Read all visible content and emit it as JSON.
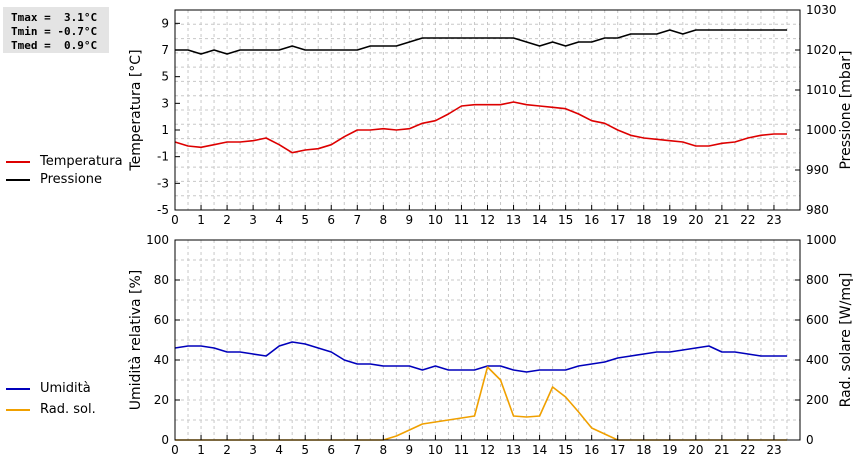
{
  "stats": {
    "tmax": "Tmax =  3.1°C",
    "tmin": "Tmin = -0.7°C",
    "tmed": "Tmed =  0.9°C"
  },
  "chart_data": [
    {
      "type": "line",
      "xlim": [
        0,
        24
      ],
      "x_ticks": [
        0,
        1,
        2,
        3,
        4,
        5,
        6,
        7,
        8,
        9,
        10,
        11,
        12,
        13,
        14,
        15,
        16,
        17,
        18,
        19,
        20,
        21,
        22,
        23
      ],
      "ylabel": "Temperatura [°C]",
      "ylim": [
        -5,
        10
      ],
      "y_ticks": [
        -5,
        -3,
        -1,
        1,
        3,
        5,
        7,
        9
      ],
      "y2label": "Pressione [mbar]",
      "y2lim": [
        980,
        1030
      ],
      "y2_ticks": [
        980,
        990,
        1000,
        1010,
        1020,
        1030
      ],
      "grid": true,
      "series": [
        {
          "name": "Temperatura",
          "color": "#dd0000",
          "axis": "left",
          "x": [
            0,
            0.5,
            1,
            1.5,
            2,
            2.5,
            3,
            3.5,
            4,
            4.5,
            5,
            5.5,
            6,
            6.5,
            7,
            7.5,
            8,
            8.5,
            9,
            9.5,
            10,
            10.5,
            11,
            11.5,
            12,
            12.5,
            13,
            13.5,
            14,
            14.5,
            15,
            15.5,
            16,
            16.5,
            17,
            17.5,
            18,
            18.5,
            19,
            19.5,
            20,
            20.5,
            21,
            21.5,
            22,
            22.5,
            23,
            23.5
          ],
          "values": [
            0.1,
            -0.2,
            -0.3,
            -0.1,
            0.1,
            0.1,
            0.2,
            0.4,
            -0.1,
            -0.7,
            -0.5,
            -0.4,
            -0.1,
            0.5,
            1.0,
            1.0,
            1.1,
            1.0,
            1.1,
            1.5,
            1.7,
            2.2,
            2.8,
            2.9,
            2.9,
            2.9,
            3.1,
            2.9,
            2.8,
            2.7,
            2.6,
            2.2,
            1.7,
            1.5,
            1.0,
            0.6,
            0.4,
            0.3,
            0.2,
            0.1,
            -0.2,
            -0.2,
            0.0,
            0.1,
            0.4,
            0.6,
            0.7,
            0.7
          ]
        },
        {
          "name": "Pressione",
          "color": "#000000",
          "axis": "right",
          "x": [
            0,
            0.5,
            1,
            1.5,
            2,
            2.5,
            3,
            3.5,
            4,
            4.5,
            5,
            5.5,
            6,
            6.5,
            7,
            7.5,
            8,
            8.5,
            9,
            9.5,
            10,
            10.5,
            11,
            11.5,
            12,
            12.5,
            13,
            13.5,
            14,
            14.5,
            15,
            15.5,
            16,
            16.5,
            17,
            17.5,
            18,
            18.5,
            19,
            19.5,
            20,
            20.5,
            21,
            21.5,
            22,
            22.5,
            23,
            23.5
          ],
          "values": [
            1020,
            1020,
            1019,
            1020,
            1019,
            1020,
            1020,
            1020,
            1020,
            1021,
            1020,
            1020,
            1020,
            1020,
            1020,
            1021,
            1021,
            1021,
            1022,
            1023,
            1023,
            1023,
            1023,
            1023,
            1023,
            1023,
            1023,
            1022,
            1021,
            1022,
            1021,
            1022,
            1022,
            1023,
            1023,
            1024,
            1024,
            1024,
            1025,
            1024,
            1025,
            1025,
            1025,
            1025,
            1025,
            1025,
            1025,
            1025
          ]
        }
      ]
    },
    {
      "type": "line",
      "xlim": [
        0,
        24
      ],
      "x_ticks": [
        0,
        1,
        2,
        3,
        4,
        5,
        6,
        7,
        8,
        9,
        10,
        11,
        12,
        13,
        14,
        15,
        16,
        17,
        18,
        19,
        20,
        21,
        22,
        23
      ],
      "ylabel": "Umidità relativa [%]",
      "ylim": [
        0,
        100
      ],
      "y_ticks": [
        0,
        20,
        40,
        60,
        80,
        100
      ],
      "y2label": "Rad. solare [W/mq]",
      "y2lim": [
        0,
        1000
      ],
      "y2_ticks": [
        0,
        200,
        400,
        600,
        800,
        1000
      ],
      "grid": true,
      "series": [
        {
          "name": "Umidità",
          "color": "#0000bb",
          "axis": "left",
          "x": [
            0,
            0.5,
            1,
            1.5,
            2,
            2.5,
            3,
            3.5,
            4,
            4.5,
            5,
            5.5,
            6,
            6.5,
            7,
            7.5,
            8,
            8.5,
            9,
            9.5,
            10,
            10.5,
            11,
            11.5,
            12,
            12.5,
            13,
            13.5,
            14,
            14.5,
            15,
            15.5,
            16,
            16.5,
            17,
            17.5,
            18,
            18.5,
            19,
            19.5,
            20,
            20.5,
            21,
            21.5,
            22,
            22.5,
            23,
            23.5
          ],
          "values": [
            46,
            47,
            47,
            46,
            44,
            44,
            43,
            42,
            47,
            49,
            48,
            46,
            44,
            40,
            38,
            38,
            37,
            37,
            37,
            35,
            37,
            35,
            35,
            35,
            37,
            37,
            35,
            34,
            35,
            35,
            35,
            37,
            38,
            39,
            41,
            42,
            43,
            44,
            44,
            45,
            46,
            47,
            44,
            44,
            43,
            42,
            42,
            42
          ]
        },
        {
          "name": "Rad. sol.",
          "color": "#f0a000",
          "axis": "right",
          "x": [
            0,
            0.5,
            1,
            1.5,
            2,
            2.5,
            3,
            3.5,
            4,
            4.5,
            5,
            5.5,
            6,
            6.5,
            7,
            7.5,
            8,
            8.5,
            9,
            9.5,
            10,
            10.5,
            11,
            11.5,
            12,
            12.5,
            13,
            13.5,
            14,
            14.5,
            15,
            15.5,
            16,
            16.5,
            17,
            17.5,
            18,
            18.5,
            19,
            19.5,
            20,
            20.5,
            21,
            21.5,
            22,
            22.5,
            23,
            23.5
          ],
          "values": [
            0,
            0,
            0,
            0,
            0,
            0,
            0,
            0,
            0,
            0,
            0,
            0,
            0,
            0,
            0,
            0,
            0,
            20,
            50,
            80,
            90,
            100,
            110,
            120,
            365,
            300,
            120,
            115,
            120,
            265,
            215,
            140,
            60,
            30,
            0,
            0,
            0,
            0,
            0,
            0,
            0,
            0,
            0,
            0,
            0,
            0,
            0,
            0
          ]
        }
      ]
    }
  ]
}
